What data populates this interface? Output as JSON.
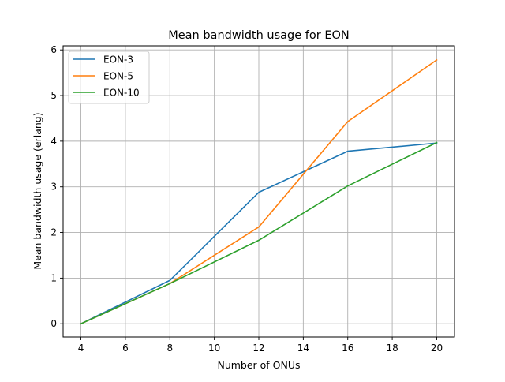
{
  "chart_data": {
    "type": "line",
    "title": "Mean bandwidth usage for EON",
    "xlabel": "Number of ONUs",
    "ylabel": "Mean bandwidth usage (erlang)",
    "x": [
      4,
      8,
      12,
      16,
      20
    ],
    "xlim": [
      3.2,
      20.8
    ],
    "ylim": [
      -0.29,
      6.09
    ],
    "xticks": [
      4,
      6,
      8,
      10,
      12,
      14,
      16,
      18,
      20
    ],
    "yticks": [
      0,
      1,
      2,
      3,
      4,
      5,
      6
    ],
    "grid": true,
    "legend_position": "top-left",
    "series": [
      {
        "name": "EON-3",
        "color": "#1f77b4",
        "values": [
          0.0,
          0.95,
          2.88,
          3.78,
          3.96
        ]
      },
      {
        "name": "EON-5",
        "color": "#ff7f0e",
        "values": [
          0.0,
          0.88,
          2.12,
          4.43,
          5.78
        ]
      },
      {
        "name": "EON-10",
        "color": "#2ca02c",
        "values": [
          0.0,
          0.88,
          1.83,
          3.02,
          3.97
        ]
      }
    ]
  }
}
